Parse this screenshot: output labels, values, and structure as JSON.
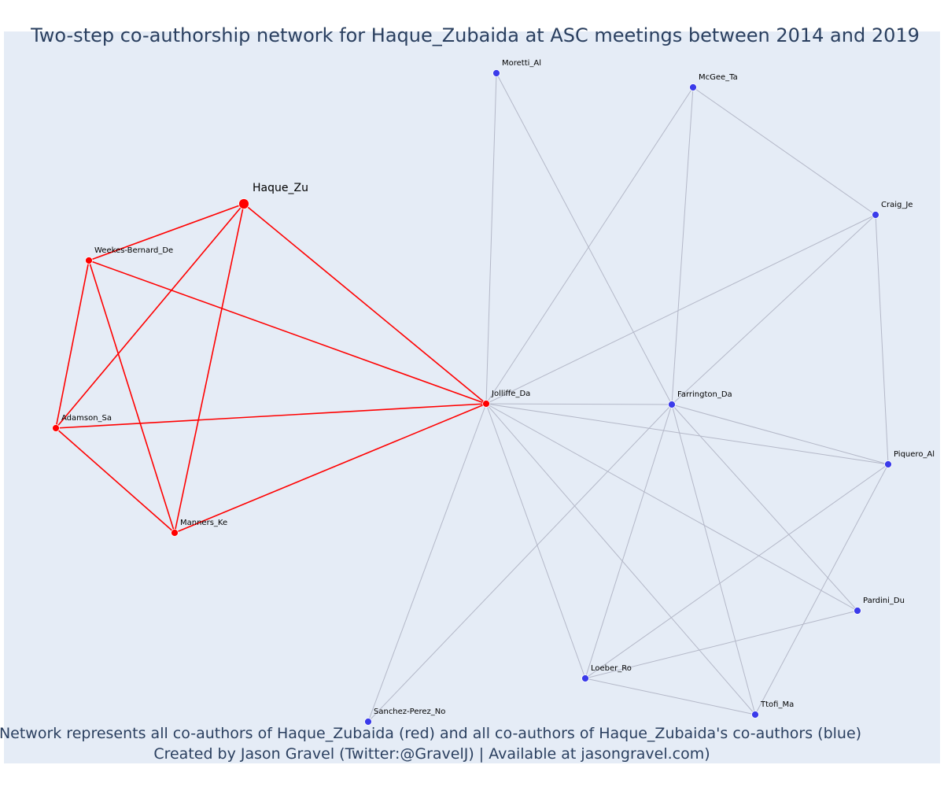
{
  "title": "Two-step co-authorship network for Haque_Zubaida at ASC meetings between 2014 and 2019",
  "caption": {
    "line1": "Network represents all co-authors of Haque_Zubaida (red) and all co-authors of Haque_Zubaida's co-authors (blue)",
    "line2": "Created by Jason Gravel (Twitter:@GravelJ) | Available at jasongravel.com)"
  },
  "colors": {
    "background": "#e5ecf6",
    "first_step": "#ff0000",
    "second_step": "#3b3bea",
    "second_step_edge": "#b4b8c8",
    "text": "#2a3f5f"
  },
  "nodes": [
    {
      "id": "Haque_Zu",
      "label": "Haque_Zu",
      "group": "focal"
    },
    {
      "id": "Weekes-Bernard_De",
      "label": "Weekes-Bernard_De",
      "group": "first"
    },
    {
      "id": "Adamson_Sa",
      "label": "Adamson_Sa",
      "group": "first"
    },
    {
      "id": "Manners_Ke",
      "label": "Manners_Ke",
      "group": "first"
    },
    {
      "id": "Jolliffe_Da",
      "label": "Jolliffe_Da",
      "group": "first"
    },
    {
      "id": "Moretti_Al",
      "label": "Moretti_Al",
      "group": "second"
    },
    {
      "id": "McGee_Ta",
      "label": "McGee_Ta",
      "group": "second"
    },
    {
      "id": "Craig_Je",
      "label": "Craig_Je",
      "group": "second"
    },
    {
      "id": "Farrington_Da",
      "label": "Farrington_Da",
      "group": "second"
    },
    {
      "id": "Piquero_Al",
      "label": "Piquero_Al",
      "group": "second"
    },
    {
      "id": "Pardini_Du",
      "label": "Pardini_Du",
      "group": "second"
    },
    {
      "id": "Loeber_Ro",
      "label": "Loeber_Ro",
      "group": "second"
    },
    {
      "id": "Ttofi_Ma",
      "label": "Ttofi_Ma",
      "group": "second"
    },
    {
      "id": "Sanchez-Perez_No",
      "label": "Sanchez-Perez_No",
      "group": "second"
    }
  ],
  "edges_first": [
    [
      "Haque_Zu",
      "Weekes-Bernard_De"
    ],
    [
      "Haque_Zu",
      "Adamson_Sa"
    ],
    [
      "Haque_Zu",
      "Manners_Ke"
    ],
    [
      "Haque_Zu",
      "Jolliffe_Da"
    ],
    [
      "Weekes-Bernard_De",
      "Adamson_Sa"
    ],
    [
      "Weekes-Bernard_De",
      "Manners_Ke"
    ],
    [
      "Weekes-Bernard_De",
      "Jolliffe_Da"
    ],
    [
      "Adamson_Sa",
      "Manners_Ke"
    ],
    [
      "Adamson_Sa",
      "Jolliffe_Da"
    ],
    [
      "Manners_Ke",
      "Jolliffe_Da"
    ]
  ],
  "edges_second": [
    [
      "Jolliffe_Da",
      "Moretti_Al"
    ],
    [
      "Jolliffe_Da",
      "McGee_Ta"
    ],
    [
      "Jolliffe_Da",
      "Craig_Je"
    ],
    [
      "Jolliffe_Da",
      "Farrington_Da"
    ],
    [
      "Jolliffe_Da",
      "Piquero_Al"
    ],
    [
      "Jolliffe_Da",
      "Pardini_Du"
    ],
    [
      "Jolliffe_Da",
      "Loeber_Ro"
    ],
    [
      "Jolliffe_Da",
      "Ttofi_Ma"
    ],
    [
      "Jolliffe_Da",
      "Sanchez-Perez_No"
    ],
    [
      "Moretti_Al",
      "Farrington_Da"
    ],
    [
      "McGee_Ta",
      "Farrington_Da"
    ],
    [
      "McGee_Ta",
      "Craig_Je"
    ],
    [
      "Craig_Je",
      "Farrington_Da"
    ],
    [
      "Craig_Je",
      "Piquero_Al"
    ],
    [
      "Farrington_Da",
      "Piquero_Al"
    ],
    [
      "Farrington_Da",
      "Pardini_Du"
    ],
    [
      "Farrington_Da",
      "Loeber_Ro"
    ],
    [
      "Farrington_Da",
      "Ttofi_Ma"
    ],
    [
      "Farrington_Da",
      "Sanchez-Perez_No"
    ],
    [
      "Piquero_Al",
      "Loeber_Ro"
    ],
    [
      "Piquero_Al",
      "Ttofi_Ma"
    ],
    [
      "Pardini_Du",
      "Loeber_Ro"
    ],
    [
      "Loeber_Ro",
      "Ttofi_Ma"
    ]
  ]
}
